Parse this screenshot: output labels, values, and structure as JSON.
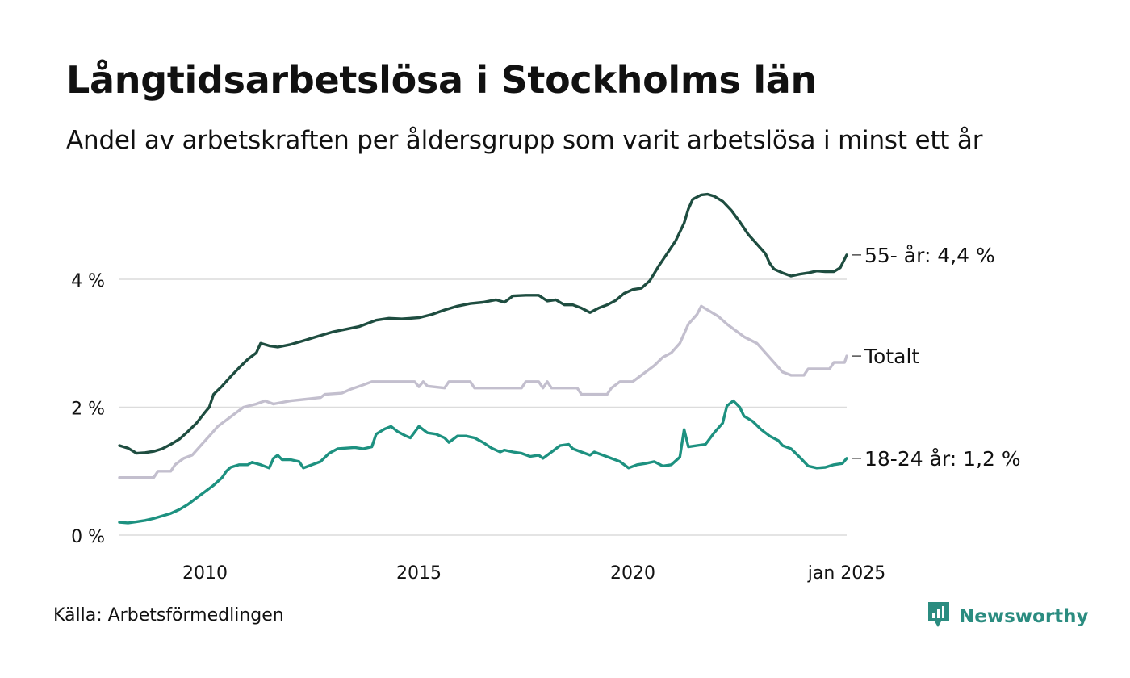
{
  "title": "Långtidsarbetslösa i Stockholms län",
  "subtitle": "Andel av arbetskraften per åldersgrupp som varit arbetslösa i minst ett år",
  "source": "Källa: Arbetsförmedlingen",
  "brand": {
    "name": "Newsworthy",
    "icon": "newsworthy-logo-icon",
    "color": "#2b8c80"
  },
  "chart_data": {
    "type": "line",
    "title": "Långtidsarbetslösa i Stockholms län",
    "subtitle": "Andel av arbetskraften per åldersgrupp som varit arbetslösa i minst ett år",
    "xlabel": "",
    "ylabel": "",
    "xlim": [
      2008.0,
      2025.0
    ],
    "ylim": [
      0,
      5.5
    ],
    "x_ticks": [
      {
        "value": 2010,
        "label": "2010"
      },
      {
        "value": 2015,
        "label": "2015"
      },
      {
        "value": 2020,
        "label": "2020"
      },
      {
        "value": 2025,
        "label": "jan 2025"
      }
    ],
    "y_ticks": [
      {
        "value": 0,
        "label": "0 %"
      },
      {
        "value": 2,
        "label": "2 %"
      },
      {
        "value": 4,
        "label": "4 %"
      }
    ],
    "grid": "horizontal",
    "legend": "none (end-of-line labels)",
    "series": [
      {
        "name": "55- år",
        "end_label": "55- år: 4,4 %",
        "color": "#1e4d40",
        "points": [
          [
            2008.0,
            1.4
          ],
          [
            2008.2,
            1.36
          ],
          [
            2008.4,
            1.28
          ],
          [
            2008.6,
            1.29
          ],
          [
            2008.8,
            1.31
          ],
          [
            2009.0,
            1.35
          ],
          [
            2009.2,
            1.42
          ],
          [
            2009.4,
            1.5
          ],
          [
            2009.6,
            1.62
          ],
          [
            2009.8,
            1.75
          ],
          [
            2010.0,
            1.92
          ],
          [
            2010.1,
            2.0
          ],
          [
            2010.2,
            2.2
          ],
          [
            2010.4,
            2.33
          ],
          [
            2010.6,
            2.48
          ],
          [
            2010.8,
            2.62
          ],
          [
            2011.0,
            2.75
          ],
          [
            2011.2,
            2.85
          ],
          [
            2011.3,
            3.0
          ],
          [
            2011.5,
            2.96
          ],
          [
            2011.7,
            2.94
          ],
          [
            2012.0,
            2.98
          ],
          [
            2012.3,
            3.04
          ],
          [
            2012.6,
            3.1
          ],
          [
            2013.0,
            3.18
          ],
          [
            2013.3,
            3.22
          ],
          [
            2013.6,
            3.26
          ],
          [
            2014.0,
            3.36
          ],
          [
            2014.3,
            3.39
          ],
          [
            2014.6,
            3.38
          ],
          [
            2015.0,
            3.4
          ],
          [
            2015.3,
            3.45
          ],
          [
            2015.6,
            3.52
          ],
          [
            2015.9,
            3.58
          ],
          [
            2016.2,
            3.62
          ],
          [
            2016.5,
            3.64
          ],
          [
            2016.8,
            3.68
          ],
          [
            2017.0,
            3.64
          ],
          [
            2017.2,
            3.74
          ],
          [
            2017.5,
            3.75
          ],
          [
            2017.8,
            3.75
          ],
          [
            2018.0,
            3.66
          ],
          [
            2018.2,
            3.68
          ],
          [
            2018.4,
            3.6
          ],
          [
            2018.6,
            3.6
          ],
          [
            2018.8,
            3.55
          ],
          [
            2019.0,
            3.48
          ],
          [
            2019.2,
            3.55
          ],
          [
            2019.4,
            3.6
          ],
          [
            2019.6,
            3.67
          ],
          [
            2019.8,
            3.78
          ],
          [
            2020.0,
            3.84
          ],
          [
            2020.2,
            3.86
          ],
          [
            2020.4,
            3.98
          ],
          [
            2020.6,
            4.2
          ],
          [
            2020.8,
            4.4
          ],
          [
            2021.0,
            4.6
          ],
          [
            2021.2,
            4.88
          ],
          [
            2021.3,
            5.1
          ],
          [
            2021.4,
            5.25
          ],
          [
            2021.6,
            5.32
          ],
          [
            2021.75,
            5.33
          ],
          [
            2021.9,
            5.3
          ],
          [
            2022.1,
            5.22
          ],
          [
            2022.3,
            5.08
          ],
          [
            2022.5,
            4.9
          ],
          [
            2022.7,
            4.7
          ],
          [
            2022.9,
            4.55
          ],
          [
            2023.1,
            4.4
          ],
          [
            2023.2,
            4.25
          ],
          [
            2023.3,
            4.16
          ],
          [
            2023.5,
            4.1
          ],
          [
            2023.7,
            4.05
          ],
          [
            2023.9,
            4.08
          ],
          [
            2024.1,
            4.1
          ],
          [
            2024.3,
            4.13
          ],
          [
            2024.5,
            4.12
          ],
          [
            2024.7,
            4.12
          ],
          [
            2024.85,
            4.18
          ],
          [
            2025.0,
            4.38
          ]
        ]
      },
      {
        "name": "Totalt",
        "end_label": "Totalt",
        "color": "#c3bfce",
        "points": [
          [
            2008.0,
            0.9
          ],
          [
            2008.8,
            0.9
          ],
          [
            2008.9,
            1.0
          ],
          [
            2009.2,
            1.0
          ],
          [
            2009.3,
            1.1
          ],
          [
            2009.5,
            1.2
          ],
          [
            2009.7,
            1.25
          ],
          [
            2009.9,
            1.4
          ],
          [
            2010.1,
            1.55
          ],
          [
            2010.3,
            1.7
          ],
          [
            2010.5,
            1.8
          ],
          [
            2010.7,
            1.9
          ],
          [
            2010.9,
            2.0
          ],
          [
            2011.2,
            2.05
          ],
          [
            2011.4,
            2.1
          ],
          [
            2011.6,
            2.05
          ],
          [
            2012.0,
            2.1
          ],
          [
            2012.7,
            2.15
          ],
          [
            2012.8,
            2.2
          ],
          [
            2013.2,
            2.22
          ],
          [
            2013.4,
            2.28
          ],
          [
            2013.7,
            2.35
          ],
          [
            2013.9,
            2.4
          ],
          [
            2014.9,
            2.4
          ],
          [
            2015.0,
            2.32
          ],
          [
            2015.1,
            2.4
          ],
          [
            2015.2,
            2.33
          ],
          [
            2015.6,
            2.3
          ],
          [
            2015.7,
            2.4
          ],
          [
            2016.2,
            2.4
          ],
          [
            2016.3,
            2.3
          ],
          [
            2017.4,
            2.3
          ],
          [
            2017.5,
            2.4
          ],
          [
            2017.8,
            2.4
          ],
          [
            2017.9,
            2.3
          ],
          [
            2018.0,
            2.4
          ],
          [
            2018.1,
            2.3
          ],
          [
            2018.7,
            2.3
          ],
          [
            2018.8,
            2.2
          ],
          [
            2019.4,
            2.2
          ],
          [
            2019.5,
            2.3
          ],
          [
            2019.7,
            2.4
          ],
          [
            2020.0,
            2.4
          ],
          [
            2020.2,
            2.5
          ],
          [
            2020.5,
            2.65
          ],
          [
            2020.7,
            2.78
          ],
          [
            2020.9,
            2.85
          ],
          [
            2021.1,
            3.0
          ],
          [
            2021.3,
            3.3
          ],
          [
            2021.5,
            3.45
          ],
          [
            2021.6,
            3.58
          ],
          [
            2021.8,
            3.5
          ],
          [
            2022.0,
            3.42
          ],
          [
            2022.2,
            3.3
          ],
          [
            2022.4,
            3.2
          ],
          [
            2022.6,
            3.1
          ],
          [
            2022.9,
            3.0
          ],
          [
            2023.1,
            2.85
          ],
          [
            2023.3,
            2.7
          ],
          [
            2023.5,
            2.55
          ],
          [
            2023.7,
            2.5
          ],
          [
            2024.0,
            2.5
          ],
          [
            2024.1,
            2.6
          ],
          [
            2024.6,
            2.6
          ],
          [
            2024.7,
            2.7
          ],
          [
            2024.95,
            2.7
          ],
          [
            2025.0,
            2.8
          ]
        ]
      },
      {
        "name": "18-24 år",
        "end_label": "18-24 år: 1,2 %",
        "color": "#1d9180",
        "points": [
          [
            2008.0,
            0.2
          ],
          [
            2008.2,
            0.19
          ],
          [
            2008.4,
            0.21
          ],
          [
            2008.6,
            0.23
          ],
          [
            2008.8,
            0.26
          ],
          [
            2009.0,
            0.3
          ],
          [
            2009.2,
            0.34
          ],
          [
            2009.4,
            0.4
          ],
          [
            2009.6,
            0.48
          ],
          [
            2009.8,
            0.58
          ],
          [
            2010.0,
            0.68
          ],
          [
            2010.2,
            0.78
          ],
          [
            2010.4,
            0.9
          ],
          [
            2010.5,
            1.0
          ],
          [
            2010.6,
            1.06
          ],
          [
            2010.8,
            1.1
          ],
          [
            2011.0,
            1.1
          ],
          [
            2011.1,
            1.14
          ],
          [
            2011.3,
            1.1
          ],
          [
            2011.5,
            1.05
          ],
          [
            2011.6,
            1.2
          ],
          [
            2011.7,
            1.25
          ],
          [
            2011.8,
            1.18
          ],
          [
            2012.0,
            1.18
          ],
          [
            2012.2,
            1.15
          ],
          [
            2012.3,
            1.05
          ],
          [
            2012.5,
            1.1
          ],
          [
            2012.7,
            1.15
          ],
          [
            2012.9,
            1.28
          ],
          [
            2013.1,
            1.35
          ],
          [
            2013.3,
            1.36
          ],
          [
            2013.5,
            1.37
          ],
          [
            2013.7,
            1.35
          ],
          [
            2013.9,
            1.38
          ],
          [
            2014.0,
            1.58
          ],
          [
            2014.2,
            1.66
          ],
          [
            2014.35,
            1.7
          ],
          [
            2014.5,
            1.62
          ],
          [
            2014.7,
            1.55
          ],
          [
            2014.8,
            1.52
          ],
          [
            2015.0,
            1.7
          ],
          [
            2015.2,
            1.6
          ],
          [
            2015.4,
            1.58
          ],
          [
            2015.6,
            1.52
          ],
          [
            2015.7,
            1.45
          ],
          [
            2015.9,
            1.55
          ],
          [
            2016.1,
            1.55
          ],
          [
            2016.3,
            1.52
          ],
          [
            2016.5,
            1.45
          ],
          [
            2016.7,
            1.36
          ],
          [
            2016.9,
            1.3
          ],
          [
            2017.0,
            1.33
          ],
          [
            2017.2,
            1.3
          ],
          [
            2017.4,
            1.28
          ],
          [
            2017.6,
            1.23
          ],
          [
            2017.8,
            1.25
          ],
          [
            2017.9,
            1.2
          ],
          [
            2018.1,
            1.3
          ],
          [
            2018.3,
            1.4
          ],
          [
            2018.5,
            1.42
          ],
          [
            2018.6,
            1.35
          ],
          [
            2018.8,
            1.3
          ],
          [
            2019.0,
            1.25
          ],
          [
            2019.1,
            1.3
          ],
          [
            2019.3,
            1.25
          ],
          [
            2019.5,
            1.2
          ],
          [
            2019.7,
            1.15
          ],
          [
            2019.9,
            1.05
          ],
          [
            2020.1,
            1.1
          ],
          [
            2020.3,
            1.12
          ],
          [
            2020.5,
            1.15
          ],
          [
            2020.7,
            1.08
          ],
          [
            2020.9,
            1.1
          ],
          [
            2021.1,
            1.22
          ],
          [
            2021.2,
            1.65
          ],
          [
            2021.3,
            1.38
          ],
          [
            2021.5,
            1.4
          ],
          [
            2021.7,
            1.42
          ],
          [
            2021.9,
            1.6
          ],
          [
            2022.1,
            1.75
          ],
          [
            2022.2,
            2.02
          ],
          [
            2022.35,
            2.1
          ],
          [
            2022.5,
            2.0
          ],
          [
            2022.6,
            1.86
          ],
          [
            2022.8,
            1.78
          ],
          [
            2023.0,
            1.65
          ],
          [
            2023.2,
            1.55
          ],
          [
            2023.4,
            1.48
          ],
          [
            2023.5,
            1.4
          ],
          [
            2023.7,
            1.35
          ],
          [
            2023.9,
            1.22
          ],
          [
            2024.1,
            1.08
          ],
          [
            2024.3,
            1.05
          ],
          [
            2024.5,
            1.06
          ],
          [
            2024.7,
            1.1
          ],
          [
            2024.9,
            1.12
          ],
          [
            2025.0,
            1.2
          ]
        ]
      }
    ]
  }
}
